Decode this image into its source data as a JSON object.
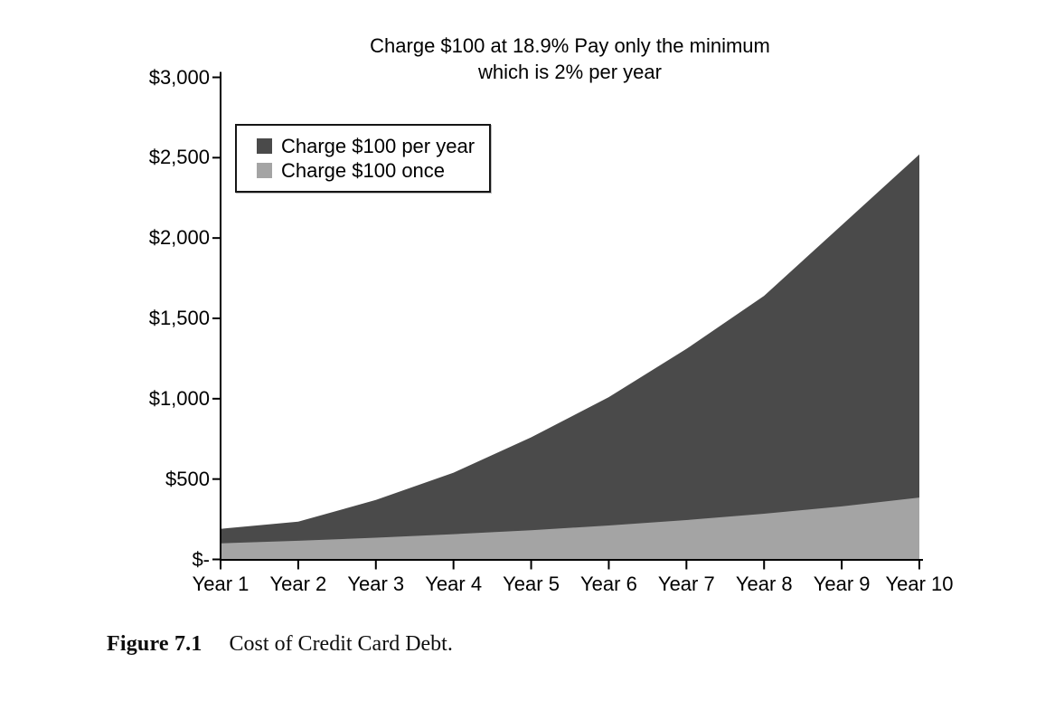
{
  "chart": {
    "title_line1": "Charge $100 at 18.9% Pay only the minimum",
    "title_line2": "which is 2% per year"
  },
  "legend": {
    "items": [
      {
        "label": "Charge $100 per year",
        "color": "#4a4a4a"
      },
      {
        "label": "Charge $100 once",
        "color": "#a4a4a4"
      }
    ]
  },
  "caption": {
    "label": "Figure 7.1",
    "text": "Cost of Credit Card Debt."
  },
  "chart_data": {
    "type": "area",
    "title": "Charge $100 at 18.9% Pay only the minimum which is 2% per year",
    "categories": [
      "Year 1",
      "Year 2",
      "Year 3",
      "Year 4",
      "Year 5",
      "Year 6",
      "Year 7",
      "Year 8",
      "Year 9",
      "Year 10"
    ],
    "series": [
      {
        "name": "Charge $100 per year",
        "color": "#4a4a4a",
        "values": [
          190,
          235,
          370,
          540,
          760,
          1010,
          1310,
          1640,
          2080,
          2520
        ]
      },
      {
        "name": "Charge $100 once",
        "color": "#a4a4a4",
        "values": [
          100,
          116,
          135,
          157,
          182,
          211,
          245,
          284,
          330,
          385
        ]
      }
    ],
    "xlabel": "",
    "ylabel": "",
    "ylim": [
      0,
      3000
    ],
    "y_tick_values": [
      0,
      500,
      1000,
      1500,
      2000,
      2500,
      3000
    ],
    "y_tick_labels": [
      "$-",
      "$500",
      "$1,000",
      "$1,500",
      "$2,000",
      "$2,500",
      "$3,000"
    ],
    "grid": false,
    "legend_position": "top-left-inside",
    "areas_overlap_front_series": "Charge $100 once"
  }
}
